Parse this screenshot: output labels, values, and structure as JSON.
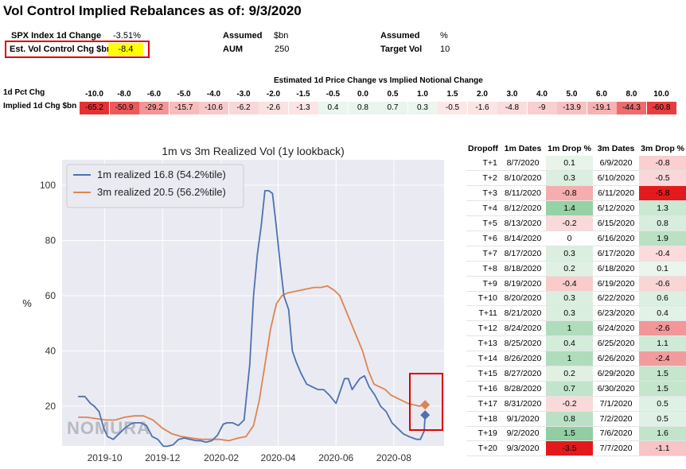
{
  "title": "Vol Control Implied Rebalances as of: 9/3/2020",
  "info": {
    "spx_label": "SPX Index 1d Change",
    "spx_value": "-3.51%",
    "est_label": "Est. Vol Control Chg $bn",
    "est_value": "-8.4",
    "assumed1": "Assumed",
    "unit1": "$bn",
    "aum_label": "AUM",
    "aum_value": "250",
    "assumed2": "Assumed",
    "unit2": "%",
    "target_label": "Target Vol",
    "target_value": "10"
  },
  "heatmap": {
    "caption": "Estimated 1d Price Change vs Implied Notional Change",
    "row1_label": "1d Pct Chg",
    "row2_label": "Implied 1d Chg $bn",
    "pct": [
      "-10.0",
      "-8.0",
      "-6.0",
      "-5.0",
      "-4.0",
      "-3.0",
      "-2.0",
      "-1.5",
      "-0.5",
      "0.0",
      "0.5",
      "1.0",
      "1.5",
      "2.0",
      "3.0",
      "4.0",
      "5.0",
      "6.0",
      "8.0",
      "10.0"
    ],
    "chg": [
      "-65.2",
      "-50.9",
      "-29.2",
      "-15.7",
      "-10.6",
      "-6.2",
      "-2.6",
      "-1.3",
      "0.4",
      "0.8",
      "0.7",
      "0.3",
      "-0.5",
      "-1.6",
      "-4.8",
      "-9",
      "-13.9",
      "-19.1",
      "-44.3",
      "-60.8"
    ],
    "colors": {
      "negative": "#e31a1c",
      "positive": "#41ab5d"
    }
  },
  "chart_data": {
    "type": "line",
    "title": "1m vs 3m Realized Vol (1y lookback)",
    "ylabel": "%",
    "xlabel": "",
    "ylim": [
      0,
      100
    ],
    "yticks": [
      "20",
      "40",
      "60",
      "80",
      "100"
    ],
    "xticks": [
      "2019-10",
      "2019-12",
      "2020-02",
      "2020-04",
      "2020-06",
      "2020-08"
    ],
    "grid": true,
    "legend_position": "upper-left",
    "watermark": "NOMURA",
    "series": [
      {
        "name": "1m realized 16.8 (54.2%tile)",
        "color": "#4c72b0",
        "x": [
          "2019-09-03",
          "2019-09-10",
          "2019-09-16",
          "2019-09-20",
          "2019-09-25",
          "2019-09-30",
          "2019-10-04",
          "2019-10-10",
          "2019-10-16",
          "2019-10-22",
          "2019-10-28",
          "2019-11-01",
          "2019-11-08",
          "2019-11-14",
          "2019-11-20",
          "2019-11-26",
          "2019-12-02",
          "2019-12-06",
          "2019-12-12",
          "2019-12-18",
          "2019-12-24",
          "2019-12-30",
          "2020-01-06",
          "2020-01-10",
          "2020-01-16",
          "2020-01-22",
          "2020-01-28",
          "2020-02-03",
          "2020-02-07",
          "2020-02-13",
          "2020-02-19",
          "2020-02-25",
          "2020-03-02",
          "2020-03-06",
          "2020-03-10",
          "2020-03-14",
          "2020-03-18",
          "2020-03-22",
          "2020-03-26",
          "2020-03-30",
          "2020-04-03",
          "2020-04-07",
          "2020-04-12",
          "2020-04-16",
          "2020-04-20",
          "2020-04-25",
          "2020-05-01",
          "2020-05-07",
          "2020-05-13",
          "2020-05-19",
          "2020-05-25",
          "2020-06-01",
          "2020-06-06",
          "2020-06-10",
          "2020-06-14",
          "2020-06-18",
          "2020-06-22",
          "2020-06-26",
          "2020-07-01",
          "2020-07-06",
          "2020-07-12",
          "2020-07-18",
          "2020-07-24",
          "2020-07-30",
          "2020-08-05",
          "2020-08-11",
          "2020-08-17",
          "2020-08-21",
          "2020-08-25",
          "2020-08-29",
          "2020-09-02",
          "2020-09-03"
        ],
        "y": [
          23.5,
          23.5,
          21,
          20,
          18,
          12,
          9,
          8,
          10,
          12,
          13.5,
          14,
          14,
          13,
          9,
          8,
          5.5,
          5.5,
          6,
          8,
          8.5,
          8,
          7.5,
          7.5,
          7,
          7.5,
          9.5,
          13.5,
          14,
          14,
          13,
          15,
          35,
          60,
          75,
          85,
          98,
          98,
          97,
          85,
          72,
          60,
          55,
          40,
          36,
          32,
          28,
          27,
          26,
          26,
          24,
          21,
          26,
          30,
          30,
          26,
          28,
          30,
          31,
          27,
          24,
          20,
          18,
          14,
          12,
          10,
          9,
          8.5,
          8,
          8,
          11,
          16.8
        ]
      },
      {
        "name": "3m realized 20.5 (56.2%tile)",
        "color": "#dd8452",
        "x": [
          "2019-09-03",
          "2019-09-12",
          "2019-09-22",
          "2019-10-02",
          "2019-10-12",
          "2019-10-22",
          "2019-11-01",
          "2019-11-11",
          "2019-11-21",
          "2019-12-01",
          "2019-12-11",
          "2019-12-21",
          "2019-12-31",
          "2020-01-10",
          "2020-01-20",
          "2020-01-30",
          "2020-02-09",
          "2020-02-19",
          "2020-02-27",
          "2020-03-06",
          "2020-03-12",
          "2020-03-18",
          "2020-03-24",
          "2020-03-30",
          "2020-04-05",
          "2020-04-11",
          "2020-04-18",
          "2020-04-25",
          "2020-05-02",
          "2020-05-09",
          "2020-05-16",
          "2020-05-23",
          "2020-05-30",
          "2020-06-05",
          "2020-06-11",
          "2020-06-17",
          "2020-06-23",
          "2020-06-29",
          "2020-07-05",
          "2020-07-11",
          "2020-07-17",
          "2020-07-23",
          "2020-07-29",
          "2020-08-04",
          "2020-08-10",
          "2020-08-16",
          "2020-08-22",
          "2020-08-28",
          "2020-09-03"
        ],
        "y": [
          16,
          16,
          15.5,
          15,
          15,
          16,
          16.5,
          16.5,
          15,
          12,
          10,
          9,
          8.5,
          8,
          8,
          8,
          7.5,
          8.5,
          9,
          13,
          22,
          35,
          48,
          57,
          60,
          61,
          61.5,
          62,
          62.5,
          63,
          63,
          63.5,
          62,
          60,
          55,
          50,
          45,
          40,
          33,
          28,
          27,
          26,
          24,
          23,
          22,
          21,
          20.5,
          20,
          20.5
        ]
      }
    ],
    "markers": [
      {
        "series": "3m realized 20.5 (56.2%tile)",
        "x": "2020-09-03",
        "y": 20.5
      },
      {
        "series": "1m realized 16.8 (54.2%tile)",
        "x": "2020-09-03",
        "y": 16.8
      }
    ]
  },
  "dropoff": {
    "headers": [
      "Dropoff",
      "1m Dates",
      "1m Drop %",
      "3m Dates",
      "3m Drop %"
    ],
    "rows": [
      [
        "T+1",
        "8/7/2020",
        "0.1",
        "6/9/2020",
        "-0.8"
      ],
      [
        "T+2",
        "8/10/2020",
        "0.3",
        "6/10/2020",
        "-0.5"
      ],
      [
        "T+3",
        "8/11/2020",
        "-0.8",
        "6/11/2020",
        "-5.8"
      ],
      [
        "T+4",
        "8/12/2020",
        "1.4",
        "6/12/2020",
        "1.3"
      ],
      [
        "T+5",
        "8/13/2020",
        "-0.2",
        "6/15/2020",
        "0.8"
      ],
      [
        "T+6",
        "8/14/2020",
        "0",
        "6/16/2020",
        "1.9"
      ],
      [
        "T+7",
        "8/17/2020",
        "0.3",
        "6/17/2020",
        "-0.4"
      ],
      [
        "T+8",
        "8/18/2020",
        "0.2",
        "6/18/2020",
        "0.1"
      ],
      [
        "T+9",
        "8/19/2020",
        "-0.4",
        "6/19/2020",
        "-0.6"
      ],
      [
        "T+10",
        "8/20/2020",
        "0.3",
        "6/22/2020",
        "0.6"
      ],
      [
        "T+11",
        "8/21/2020",
        "0.3",
        "6/23/2020",
        "0.4"
      ],
      [
        "T+12",
        "8/24/2020",
        "1",
        "6/24/2020",
        "-2.6"
      ],
      [
        "T+13",
        "8/25/2020",
        "0.4",
        "6/25/2020",
        "1.1"
      ],
      [
        "T+14",
        "8/26/2020",
        "1",
        "6/26/2020",
        "-2.4"
      ],
      [
        "T+15",
        "8/27/2020",
        "0.2",
        "6/29/2020",
        "1.5"
      ],
      [
        "T+16",
        "8/28/2020",
        "0.7",
        "6/30/2020",
        "1.5"
      ],
      [
        "T+17",
        "8/31/2020",
        "-0.2",
        "7/1/2020",
        "0.5"
      ],
      [
        "T+18",
        "9/1/2020",
        "0.8",
        "7/2/2020",
        "0.5"
      ],
      [
        "T+19",
        "9/2/2020",
        "1.5",
        "7/6/2020",
        "1.6"
      ],
      [
        "T+20",
        "9/3/2020",
        "-3.5",
        "7/7/2020",
        "-1.1"
      ]
    ]
  },
  "colors": {
    "highlight_border": "#e00000",
    "highlight_fill": "#ffff00"
  }
}
